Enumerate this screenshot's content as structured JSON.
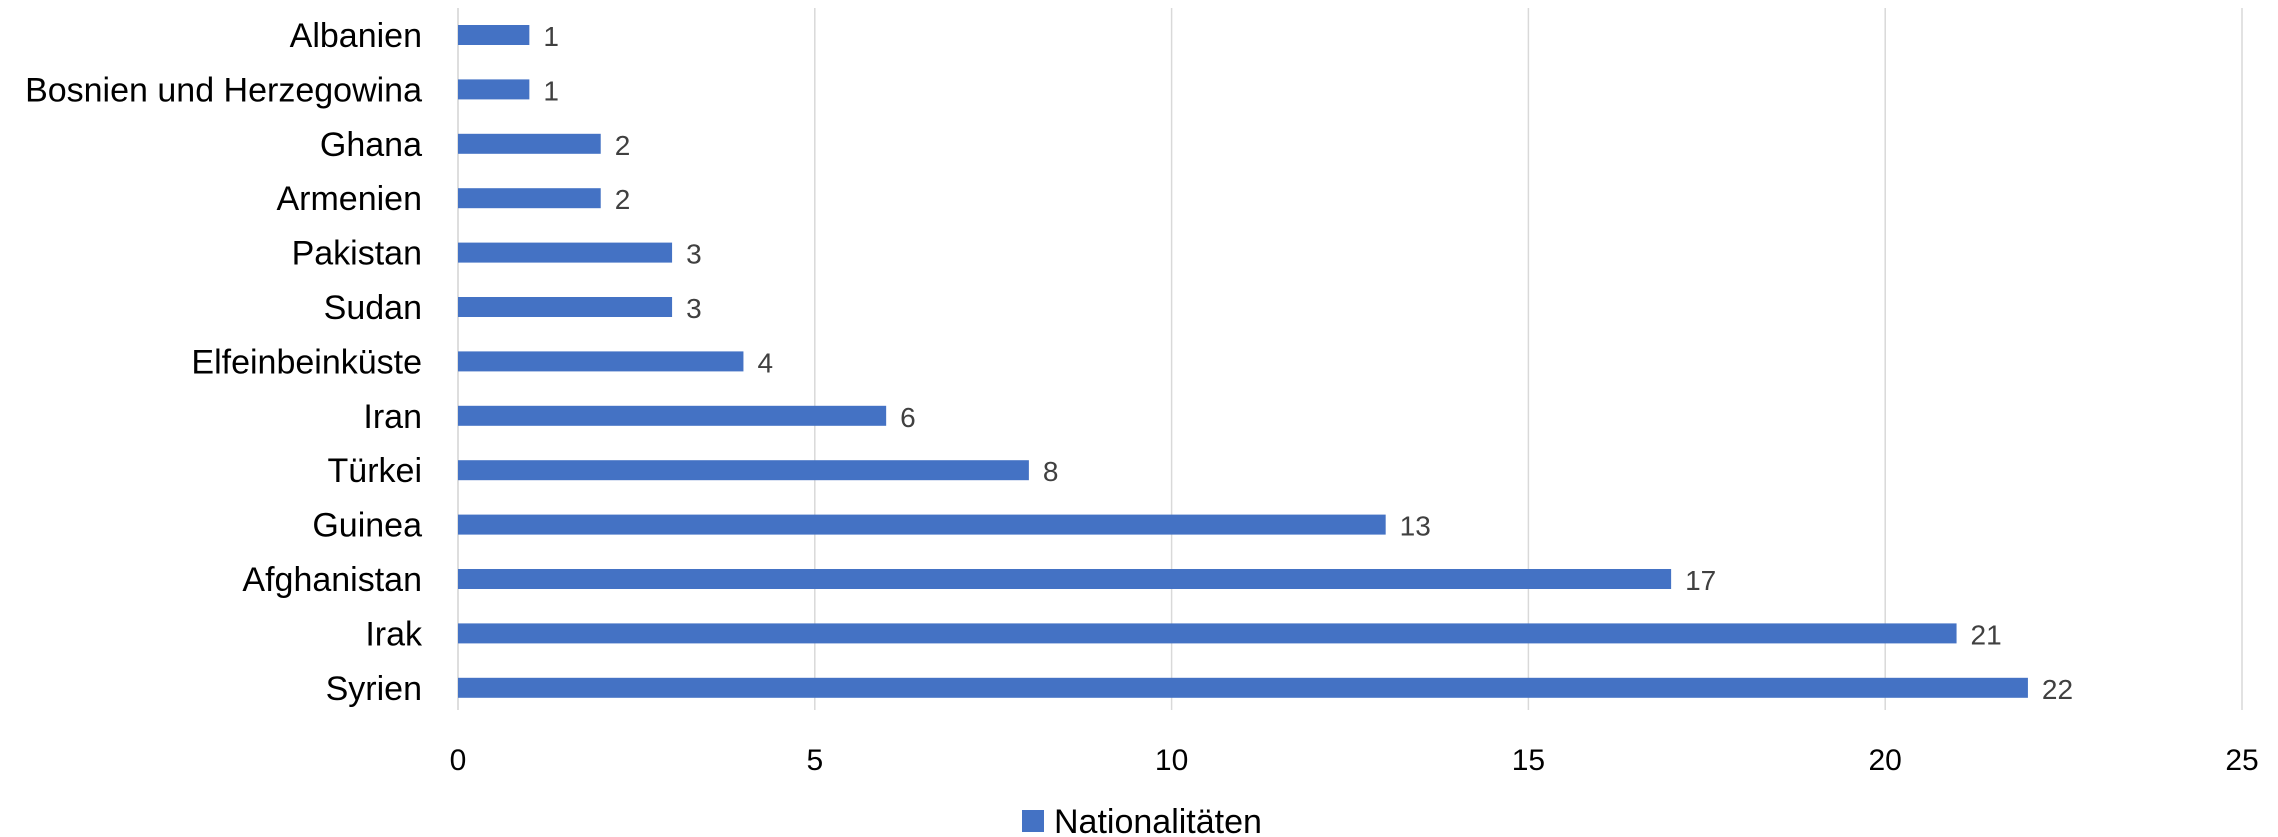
{
  "chart_data": {
    "type": "bar",
    "orientation": "horizontal",
    "categories": [
      "Albanien",
      "Bosnien und Herzegowina",
      "Ghana",
      "Armenien",
      "Pakistan",
      "Sudan",
      "Elfeinbeinküste",
      "Iran",
      "Türkei",
      "Guinea",
      "Afghanistan",
      "Irak",
      "Syrien"
    ],
    "series": [
      {
        "name": "Nationalitäten",
        "values": [
          1,
          1,
          2,
          2,
          3,
          3,
          4,
          6,
          8,
          13,
          17,
          21,
          22
        ],
        "color": "#4472C4"
      }
    ],
    "xlim": [
      0,
      25
    ],
    "xticks": [
      "0",
      "5",
      "10",
      "15",
      "20",
      "25"
    ],
    "grid": "vertical",
    "legend": "bottom-center",
    "data_labels": true
  }
}
